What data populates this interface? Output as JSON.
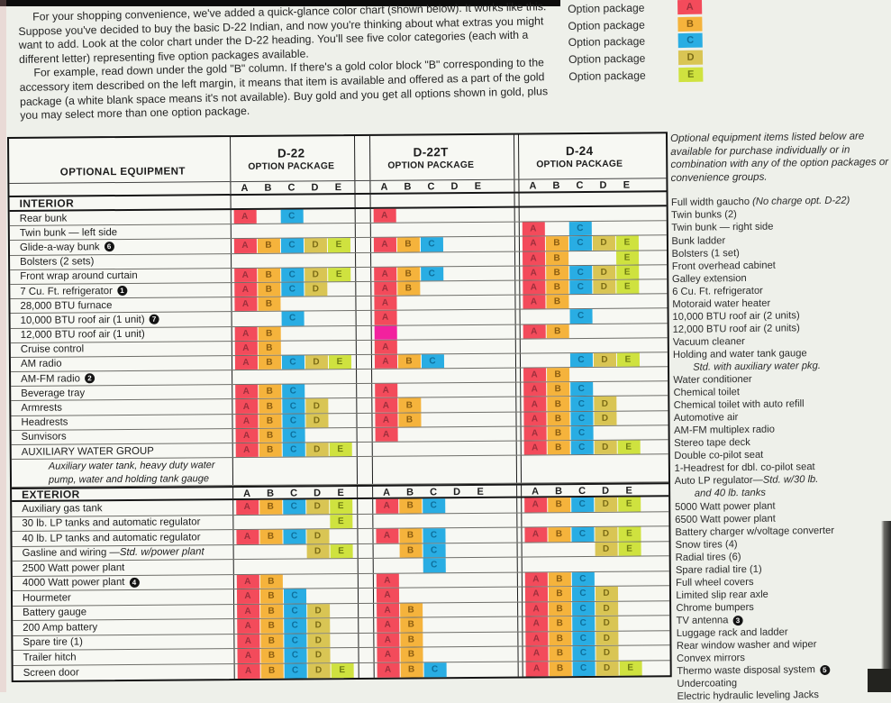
{
  "intro": {
    "p1": "For your shopping convenience, we've added a quick-glance color chart (shown below). It works like this. Suppose you've decided to buy the basic D-22 Indian, and now you're thinking about what extras you might want to add. Look at the color chart under the D-22 heading. You'll see five color categories (each with a different letter) representing five option packages available.",
    "p2": "For example, read down under the gold \"B\" column. If there's a gold color block \"B\" corresponding to the accessory item described on the left margin, it means that item is available and offered as a part of the gold package (a white blank space means it's not available). Buy gold and you get all options shown in gold, plus you may select more than one option package."
  },
  "legend": {
    "label": "Option package",
    "packages": [
      "A",
      "B",
      "C",
      "D",
      "E"
    ]
  },
  "colors": {
    "A": "#f34b5b",
    "B": "#f5b33c",
    "C": "#29ade3",
    "D": "#d9c554",
    "E": "#cfe23f",
    "M": "#f2219e",
    "letter_A": "#9e2f3c",
    "letter_B": "#8a5c10",
    "letter_C": "#0e6f9c",
    "letter_D": "#7c6c16",
    "letter_E": "#6e7c12"
  },
  "table": {
    "equipment_header": "OPTIONAL EQUIPMENT",
    "package_letters": [
      "A",
      "B",
      "C",
      "D",
      "E"
    ],
    "groups": [
      {
        "model": "D-22",
        "sub": "OPTION PACKAGE"
      },
      {
        "model": "D-22T",
        "sub": "OPTION PACKAGE"
      },
      {
        "model": "D-24",
        "sub": "OPTION PACKAGE"
      }
    ],
    "sections": [
      {
        "name": "INTERIOR",
        "show_letters": false,
        "rows": [
          {
            "label": "Rear bunk",
            "d22": "AC",
            "d22t": "A",
            "d24": ""
          },
          {
            "label": "Twin bunk — left side",
            "d22": "",
            "d22t": "",
            "d24": "AC"
          },
          {
            "label": "Glide-a-way bunk",
            "fn": "6",
            "d22": "ABCDE",
            "d22t": "ABC",
            "d24": "ABCDE"
          },
          {
            "label": "Bolsters (2 sets)",
            "d22": "",
            "d22t": "",
            "d24": "ABE"
          },
          {
            "label": "Front wrap around curtain",
            "d22": "ABCDE",
            "d22t": "ABC",
            "d24": "ABCDE"
          },
          {
            "label": "7 Cu. Ft. refrigerator",
            "fn": "1",
            "d22": "ABCD",
            "d22t": "AB",
            "d24": "ABCDE"
          },
          {
            "label": "28,000 BTU furnace",
            "d22": "AB",
            "d22t": "A",
            "d24": "AB"
          },
          {
            "label": "10,000 BTU roof air (1 unit)",
            "fn": "7",
            "d22": "C",
            "d22t": "A",
            "d24": "C"
          },
          {
            "label": "12,000 BTU roof air (1 unit)",
            "d22": "AB",
            "d22t": "M",
            "d24": "AB"
          },
          {
            "label": "Cruise control",
            "d22": "AB",
            "d22t": "A",
            "d24": ""
          },
          {
            "label": "AM radio",
            "d22": "ABCDE",
            "d22t": "ABC",
            "d24": "CDE"
          },
          {
            "label": "AM-FM radio",
            "fn": "2",
            "d22": "",
            "d22t": "",
            "d24": "AB"
          },
          {
            "label": "Beverage tray",
            "d22": "ABC",
            "d22t": "A",
            "d24": "ABC"
          },
          {
            "label": "Armrests",
            "d22": "ABCD",
            "d22t": "AB",
            "d24": "ABCD"
          },
          {
            "label": "Headrests",
            "d22": "ABCD",
            "d22t": "AB",
            "d24": "ABCD"
          },
          {
            "label": "Sunvisors",
            "d22": "ABC",
            "d22t": "A",
            "d24": "ABC"
          },
          {
            "label": "AUXILIARY WATER GROUP",
            "d22": "ABCDE",
            "d22t": "",
            "d24": "ABCDE",
            "desc": [
              "Auxiliary water tank, heavy duty water",
              "pump, water and holding tank gauge"
            ]
          }
        ]
      },
      {
        "name": "EXTERIOR",
        "show_letters": true,
        "rows": [
          {
            "label": "Auxiliary gas tank",
            "d22": "ABCDE",
            "d22t": "ABC",
            "d24": "ABCDE"
          },
          {
            "label": "30 lb. LP tanks and automatic regulator",
            "d22": "E",
            "d22t": "",
            "d24": ""
          },
          {
            "label": "40 lb. LP tanks and automatic regulator",
            "d22": "ABCD",
            "d22t": "ABC",
            "d24": "ABCDE"
          },
          {
            "label": "Gasline and wiring — ",
            "label_italic": "Std. w/power plant",
            "d22": "DE",
            "d22t": "BC",
            "d24": "DE"
          },
          {
            "label": "2500 Watt power plant",
            "d22": "",
            "d22t": "C",
            "d24": ""
          },
          {
            "label": "4000 Watt power plant",
            "fn": "4",
            "d22": "AB",
            "d22t": "A",
            "d24": "ABC"
          },
          {
            "label": "Hourmeter",
            "d22": "ABC",
            "d22t": "A",
            "d24": "ABCD"
          },
          {
            "label": "Battery gauge",
            "d22": "ABCD",
            "d22t": "AB",
            "d24": "ABCD"
          },
          {
            "label": "200 Amp battery",
            "d22": "ABCD",
            "d22t": "AB",
            "d24": "ABCD"
          },
          {
            "label": "Spare tire (1)",
            "d22": "ABCD",
            "d22t": "AB",
            "d24": "ABCD"
          },
          {
            "label": "Trailer hitch",
            "d22": "ABCD",
            "d22t": "AB",
            "d24": "ABCD"
          },
          {
            "label": "Screen door",
            "d22": "ABCDE",
            "d22t": "ABC",
            "d24": "ABCDE"
          }
        ]
      }
    ]
  },
  "sidebar": {
    "intro": "Optional equipment items listed below are available for purchase individually or in combination with any of the option packages or convenience groups.",
    "items": [
      {
        "text": "Full width gaucho ",
        "it": "(No charge opt. D-22)"
      },
      {
        "text": "Twin bunks (2)"
      },
      {
        "text": "Twin bunk — right side"
      },
      {
        "text": "Bunk ladder"
      },
      {
        "text": "Bolsters (1 set)"
      },
      {
        "text": "Front overhead cabinet"
      },
      {
        "text": "Galley extension"
      },
      {
        "text": "6 Cu. Ft. refrigerator"
      },
      {
        "text": "Motoraid water heater"
      },
      {
        "text": "10,000 BTU roof air (2 units)"
      },
      {
        "text": "12,000 BTU roof air (2 units)"
      },
      {
        "text": "Vacuum cleaner"
      },
      {
        "text": "Holding and water tank gauge"
      },
      {
        "it": "Std. with auxiliary water pkg.",
        "indent": true
      },
      {
        "text": "Water conditioner"
      },
      {
        "text": "Chemical toilet"
      },
      {
        "text": "Chemical toilet with auto refill"
      },
      {
        "text": "Automotive air"
      },
      {
        "text": "AM-FM multiplex radio"
      },
      {
        "text": "Stereo tape deck"
      },
      {
        "text": "Double co-pilot seat"
      },
      {
        "text": "1-Headrest for dbl. co-pilot seat"
      },
      {
        "text": "Auto LP regulator—",
        "it": "Std. w/30 lb."
      },
      {
        "it": "and 40 lb. tanks",
        "indent": true
      },
      {
        "text": "5000 Watt power plant"
      },
      {
        "text": "6500 Watt power plant"
      },
      {
        "text": "Battery charger w/voltage converter"
      },
      {
        "text": "Snow tires (4)"
      },
      {
        "text": "Radial tires (6)"
      },
      {
        "text": "Spare radial tire (1)"
      },
      {
        "text": "Full wheel covers"
      },
      {
        "text": "Limited slip rear axle"
      },
      {
        "text": "Chrome bumpers"
      },
      {
        "text": "TV antenna",
        "fn": "3"
      },
      {
        "text": "Luggage rack and ladder"
      },
      {
        "text": "Rear window washer and wiper"
      },
      {
        "text": "Convex mirrors"
      },
      {
        "text": "Thermo waste disposal system",
        "fn": "5"
      },
      {
        "text": "Undercoating"
      },
      {
        "text": "Electric hydraulic leveling Jacks"
      }
    ]
  }
}
